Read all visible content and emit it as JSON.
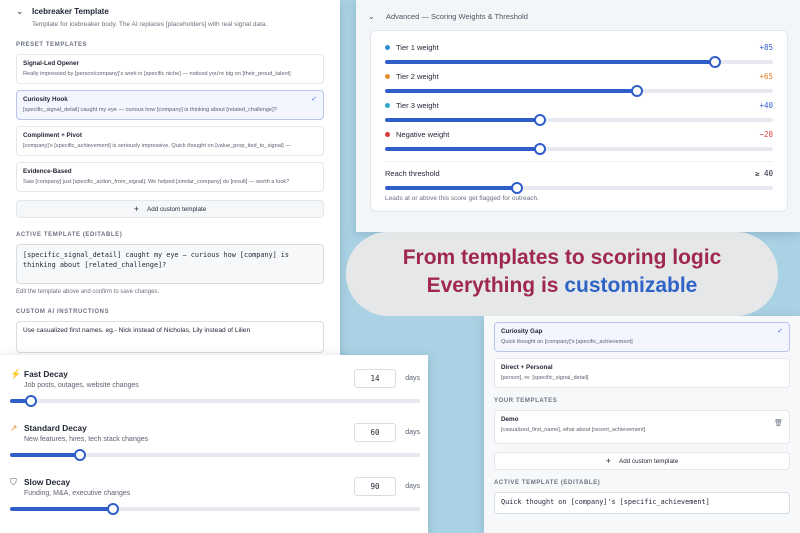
{
  "icebreaker": {
    "title": "Icebreaker Template",
    "description": "Template for icebreaker body. The AI replaces [placeholders] with real signal data.",
    "preset_caption": "PRESET TEMPLATES",
    "presets": [
      {
        "name": "Signal-Led Opener",
        "text": "Really impressed by [person/company]'s work in [specific niche] — noticed you're big on [their_proud_talent]",
        "selected": false
      },
      {
        "name": "Curiosity Hook",
        "text": "[specific_signal_detail] caught my eye — curious how [company] is thinking about [related_challenge]?",
        "selected": true
      },
      {
        "name": "Compliment + Pivot",
        "text": "[company]'s [specific_achievement] is seriously impressive. Quick thought on [value_prop_tied_to_signal] —",
        "selected": false
      },
      {
        "name": "Evidence-Based",
        "text": "Saw [company] just [specific_action_from_signal]. We helped [similar_company] do [result] — worth a look?",
        "selected": false
      }
    ],
    "add_label": "Add custom template",
    "active_caption": "ACTIVE TEMPLATE (EDITABLE)",
    "active_text": "[specific_signal_detail] caught my eye — curious how [company] is thinking about [related_challenge]?",
    "active_hint": "Edit the template above and confirm to save changes.",
    "instructions_caption": "CUSTOM AI INSTRUCTIONS",
    "instructions_text": "Use casualized first names. eg.- Nick instead of Nicholas, Lily instead of Lilien"
  },
  "scoring": {
    "header": "Advanced — Scoring Weights & Threshold",
    "weights": [
      {
        "label": "Tier 1 weight",
        "value": "+85",
        "level": 0.85,
        "dot": "#2f8fd0",
        "value_color": "#2f5ec9"
      },
      {
        "label": "Tier 2 weight",
        "value": "+65",
        "level": 0.65,
        "dot": "#e8912c",
        "value_color": "#e07b1d"
      },
      {
        "label": "Tier 3 weight",
        "value": "+40",
        "level": 0.4,
        "dot": "#2fa6c9",
        "value_color": "#2f5ec9"
      },
      {
        "label": "Negative weight",
        "value": "−20",
        "level": 0.4,
        "dot": "#d83a3a",
        "value_color": "#d83a3a"
      }
    ],
    "threshold": {
      "label": "Reach threshold",
      "value": "≥ 40",
      "level": 0.34
    },
    "threshold_note": "Leads at or above this score get flagged for outreach."
  },
  "caption": {
    "line1": "From templates to scoring logic",
    "line2_prefix": "Everything is ",
    "line2_highlight": "customizable"
  },
  "right_templates": {
    "items": [
      {
        "name": "Curiosity Gap",
        "text": "Quick thought on [company]'s [specific_achievement]",
        "selected": true
      },
      {
        "name": "Direct + Personal",
        "text": "[person], re: [specific_signal_detail]",
        "selected": false
      }
    ],
    "your_caption": "YOUR TEMPLATES",
    "custom": {
      "name": "Demo",
      "text": "[casualized_first_name], what about [recent_achievement]"
    },
    "add_label": "Add custom template",
    "active_caption": "ACTIVE TEMPLATE (EDITABLE)",
    "active_text": "Quick thought on [company]'s [specific_achievement]"
  },
  "decay": {
    "unit": "days",
    "items": [
      {
        "icon": "⚡",
        "icon_name": "lightning-icon",
        "name": "Fast Decay",
        "desc": "Job posts, outages, website changes",
        "value": "14",
        "level": 0.05
      },
      {
        "icon": "↗",
        "icon_name": "trend-up-icon",
        "name": "Standard Decay",
        "desc": "New features, hires, tech stack changes",
        "value": "60",
        "level": 0.17
      },
      {
        "icon": "⛉",
        "icon_name": "shield-icon",
        "name": "Slow Decay",
        "desc": "Funding, M&A, executive changes",
        "value": "90",
        "level": 0.25
      }
    ]
  }
}
